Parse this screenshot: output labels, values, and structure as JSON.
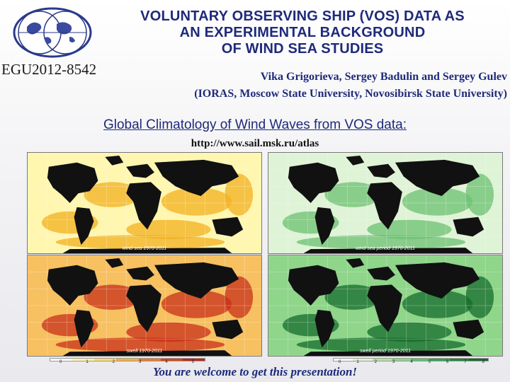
{
  "header": {
    "event_id": "EGU2012-8542",
    "title_lines": [
      "VOLUNTARY OBSERVING SHIP (VOS) DATA AS",
      "AN EXPERIMENTAL BACKGROUND",
      "OF WIND SEA STUDIES"
    ],
    "authors": "Vika Grigorieva, Sergey Badulin and Sergey Gulev",
    "affiliations": "(IORAS, Moscow State University, Novosibirsk State University)"
  },
  "section": {
    "heading": "Global Climatology of Wind Waves from VOS data:",
    "url": "http://www.sail.msk.ru/atlas"
  },
  "maps": [
    {
      "caption": "wind sea 1970-2011",
      "palette": "yellow"
    },
    {
      "caption": "wind sea period 1970-2011",
      "palette": "green"
    },
    {
      "caption": "swell 1970-2011",
      "palette": "red"
    },
    {
      "caption": "swell period 1970-2011",
      "palette": "darkgreen"
    }
  ],
  "colorbar_left": {
    "ticks": [
      "0",
      "1",
      "2",
      "3",
      "4",
      "5"
    ]
  },
  "colorbar_right": {
    "ticks": [
      "0",
      "1",
      "2",
      "3",
      "4",
      "5",
      "6",
      "7",
      "8"
    ]
  },
  "footer": {
    "note": "You are welcome to get this presentation!"
  },
  "colors": {
    "title": "#1e2a7a",
    "yellow_low": "#fff6b0",
    "yellow_high": "#f2b020",
    "green_low": "#dff3d6",
    "green_high": "#6cc070",
    "red_low": "#f7c060",
    "red_high": "#c8301a",
    "darkgreen_low": "#8fd58a",
    "darkgreen_high": "#156b2c"
  }
}
